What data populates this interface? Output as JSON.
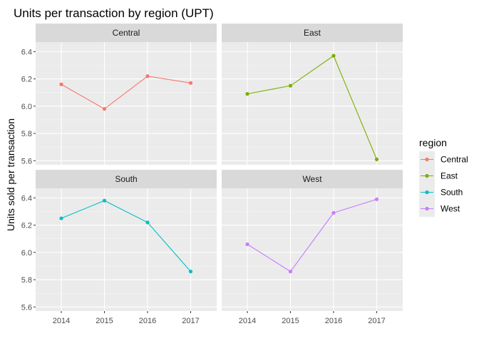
{
  "chart_data": {
    "type": "line",
    "title": "Units per transaction by region (UPT)",
    "xlabel": "",
    "ylabel": "Units sold per transaction",
    "categories": [
      "2014",
      "2015",
      "2016",
      "2017"
    ],
    "ylim": [
      5.57,
      6.47
    ],
    "yticks": [
      "5.6",
      "5.8",
      "6.0",
      "6.2",
      "6.4"
    ],
    "grid": true,
    "facets": [
      "Central",
      "East",
      "South",
      "West"
    ],
    "legend": {
      "title": "region",
      "position": "right"
    },
    "series": [
      {
        "name": "Central",
        "color": "#F8766D",
        "values": [
          6.16,
          5.98,
          6.22,
          6.17
        ]
      },
      {
        "name": "East",
        "color": "#7CAE00",
        "values": [
          6.09,
          6.15,
          6.37,
          5.61
        ]
      },
      {
        "name": "South",
        "color": "#00BFC4",
        "values": [
          6.25,
          6.38,
          6.22,
          5.86
        ]
      },
      {
        "name": "West",
        "color": "#C77CFF",
        "values": [
          6.06,
          5.86,
          6.29,
          6.39
        ]
      }
    ]
  }
}
